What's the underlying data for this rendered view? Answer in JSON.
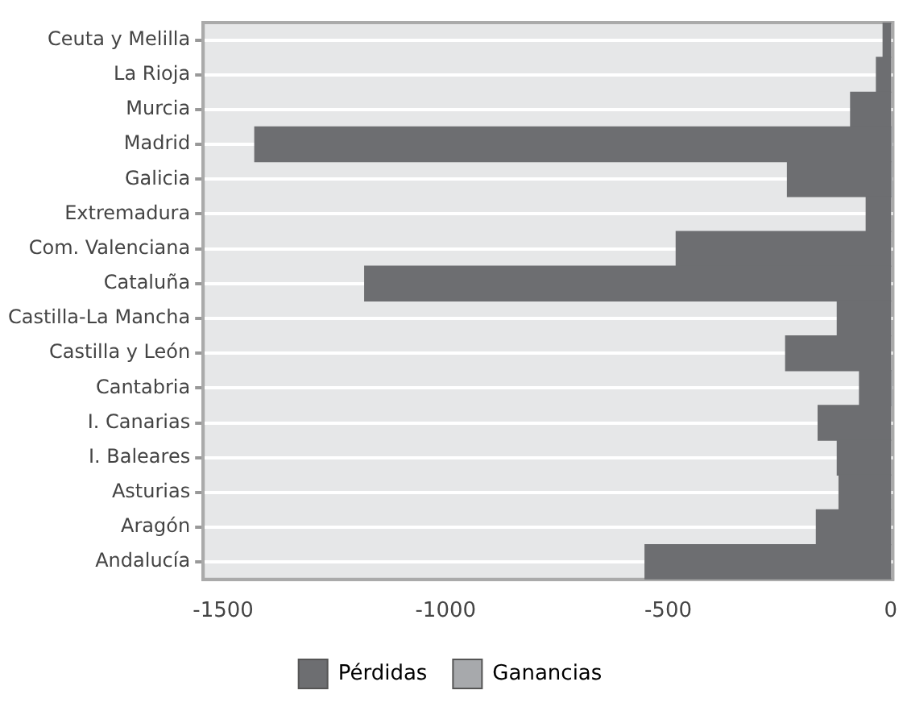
{
  "chart_data": {
    "type": "bar",
    "orientation": "horizontal",
    "stacked": true,
    "categories": [
      "Ceuta y Melilla",
      "La Rioja",
      "Murcia",
      "Madrid",
      "Galicia",
      "Extremadura",
      "Com. Valenciana",
      "Cataluña",
      "Castilla-La Mancha",
      "Castilla y León",
      "Cantabria",
      "I. Canarias",
      "I. Baleares",
      "Asturias",
      "Aragón",
      "Andalucía"
    ],
    "series": [
      {
        "name": "Pérdidas",
        "color": "#6d6e71",
        "values": [
          -17,
          -32,
          -90,
          -1429,
          -232,
          -55,
          -482,
          -1182,
          -120,
          -236,
          -70,
          -163,
          -120,
          -116,
          -167,
          -552
        ]
      },
      {
        "name": "Ganancias",
        "color": "#a7a9ac",
        "values": [
          null,
          null,
          null,
          4,
          4,
          null,
          null,
          null,
          null,
          null,
          4,
          null,
          null,
          null,
          null,
          null
        ]
      }
    ],
    "xlim": [
      -1545,
      5
    ],
    "xticks": [
      -1500,
      -1000,
      -500,
      0
    ],
    "grid": "y",
    "legend": "bottom"
  }
}
